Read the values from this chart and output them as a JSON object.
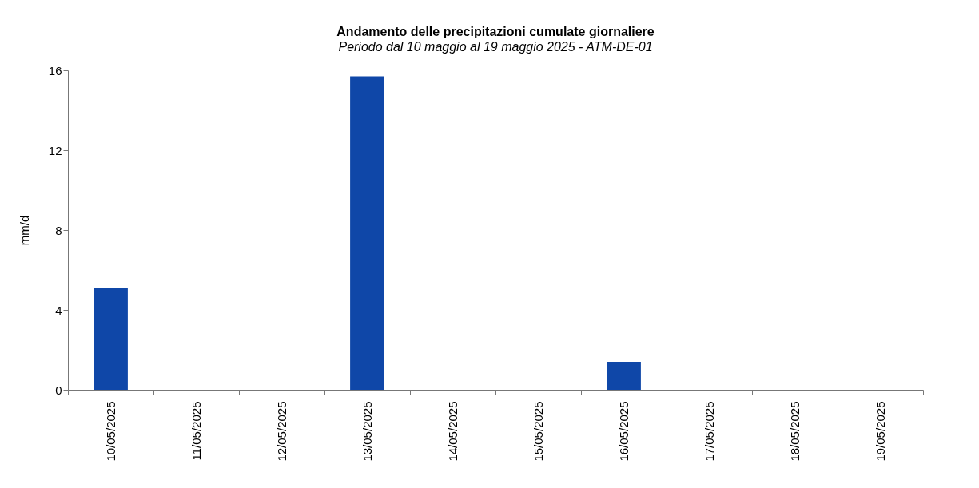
{
  "chart_data": {
    "type": "bar",
    "title": "Andamento delle precipitazioni cumulate giornaliere",
    "subtitle": "Periodo dal 10 maggio al 19 maggio 2025 - ATM-DE-01",
    "ylabel": "mm/d",
    "categories": [
      "10/05/2025",
      "11/05/2025",
      "12/05/2025",
      "13/05/2025",
      "14/05/2025",
      "15/05/2025",
      "16/05/2025",
      "17/05/2025",
      "18/05/2025",
      "19/05/2025"
    ],
    "values": [
      5.1,
      0,
      0,
      15.7,
      0,
      0,
      1.4,
      0,
      0,
      0
    ],
    "color": "#0f47a8",
    "ylim": [
      0,
      16
    ],
    "yticks": [
      0,
      4,
      8,
      12,
      16
    ],
    "grid": false
  }
}
